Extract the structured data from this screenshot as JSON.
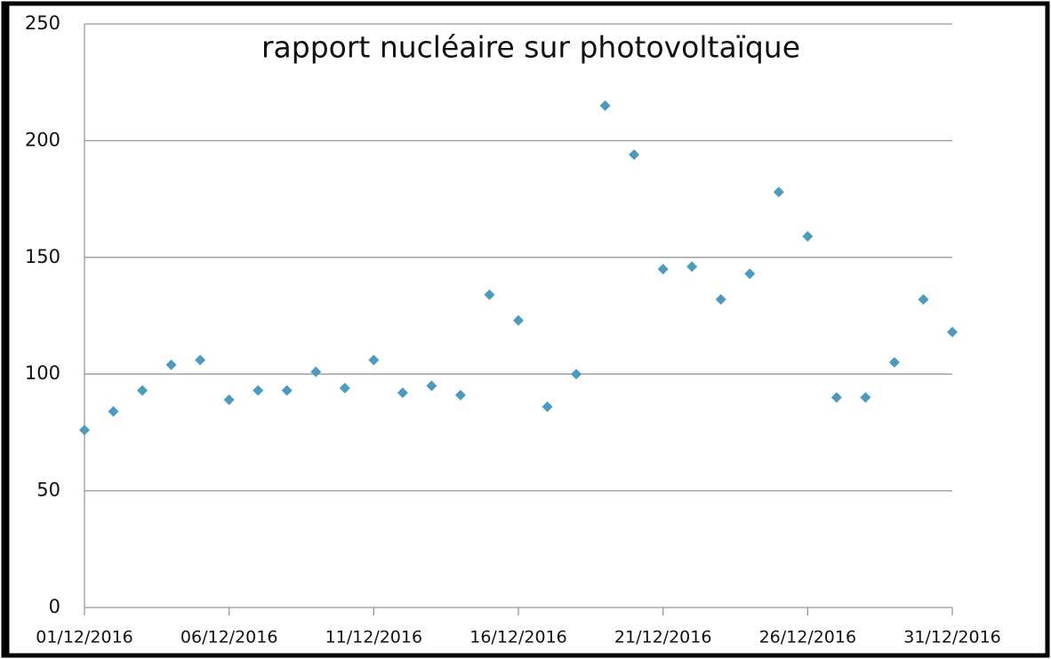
{
  "chart_data": {
    "type": "scatter",
    "title": "rapport nucléaire sur photovoltaïque",
    "x": [
      "01/12/2016",
      "02/12/2016",
      "03/12/2016",
      "04/12/2016",
      "05/12/2016",
      "06/12/2016",
      "07/12/2016",
      "08/12/2016",
      "09/12/2016",
      "10/12/2016",
      "11/12/2016",
      "12/12/2016",
      "13/12/2016",
      "14/12/2016",
      "15/12/2016",
      "16/12/2016",
      "17/12/2016",
      "18/12/2016",
      "19/12/2016",
      "20/12/2016",
      "21/12/2016",
      "22/12/2016",
      "23/12/2016",
      "24/12/2016",
      "25/12/2016",
      "26/12/2016",
      "27/12/2016",
      "28/12/2016",
      "29/12/2016",
      "30/12/2016",
      "31/12/2016"
    ],
    "values": [
      76,
      84,
      93,
      104,
      106,
      89,
      93,
      93,
      101,
      94,
      106,
      92,
      95,
      91,
      134,
      123,
      86,
      100,
      215,
      194,
      145,
      146,
      132,
      143,
      178,
      159,
      90,
      90,
      105,
      132,
      118
    ],
    "color": "#4a9bbd",
    "xlim": [
      "01/12/2016",
      "31/12/2016"
    ],
    "xticks": [
      "01/12/2016",
      "06/12/2016",
      "11/12/2016",
      "16/12/2016",
      "21/12/2016",
      "26/12/2016",
      "31/12/2016"
    ],
    "ylim": [
      0,
      250
    ],
    "yticks": [
      0,
      50,
      100,
      150,
      200,
      250
    ],
    "grid": true
  }
}
